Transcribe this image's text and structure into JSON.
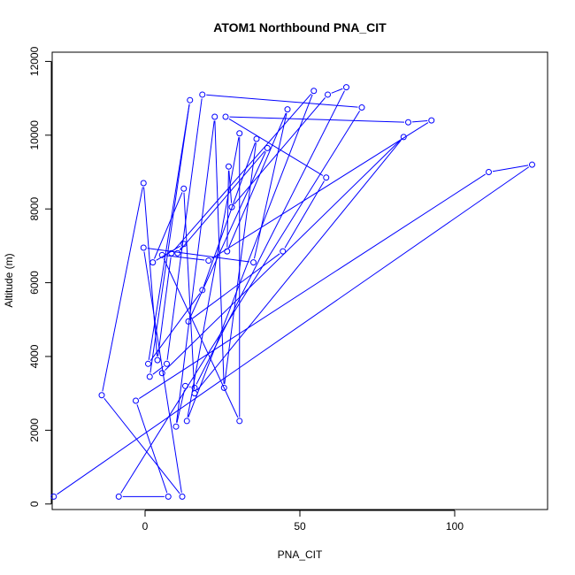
{
  "chart_data": {
    "type": "line",
    "title": "ATOM1 Northbound PNA_CIT",
    "xlabel": "PNA_CIT",
    "ylabel": "Altitude (m)",
    "xlim": [
      -30,
      130
    ],
    "ylim": [
      -150,
      12250
    ],
    "x_ticks": [
      0,
      50,
      100
    ],
    "y_ticks": [
      0,
      2000,
      4000,
      6000,
      8000,
      10000,
      12000
    ],
    "grid": false,
    "legend": "none",
    "color": "#0000ff",
    "series": [
      {
        "points": [
          [
            -29.5,
            200
          ],
          [
            125,
            9200
          ],
          [
            111,
            9000
          ],
          [
            -3,
            2800
          ],
          [
            7.5,
            200
          ],
          [
            -8.5,
            200
          ],
          [
            70,
            10750
          ],
          [
            18.5,
            11100
          ],
          [
            7,
            3800
          ],
          [
            1.5,
            3450
          ],
          [
            14.5,
            10950
          ],
          [
            1,
            3800
          ],
          [
            18.5,
            5800
          ],
          [
            36,
            9900
          ],
          [
            25.5,
            3150
          ],
          [
            22.5,
            10500
          ],
          [
            10,
            2100
          ],
          [
            13,
            3200
          ],
          [
            16,
            3150
          ],
          [
            65,
            11300
          ],
          [
            59,
            11100
          ],
          [
            28,
            8050
          ],
          [
            27,
            9150
          ],
          [
            26.5,
            6850
          ],
          [
            46,
            10700
          ],
          [
            35,
            6550
          ],
          [
            -0.5,
            6950
          ],
          [
            12,
            200
          ],
          [
            -14,
            2950
          ],
          [
            -0.5,
            8700
          ],
          [
            4,
            3900
          ],
          [
            8.5,
            6800
          ],
          [
            54.5,
            11200
          ],
          [
            13.5,
            2250
          ],
          [
            30.5,
            10050
          ],
          [
            30.5,
            2250
          ],
          [
            5.5,
            6750
          ],
          [
            20.5,
            6600
          ],
          [
            92.5,
            10400
          ],
          [
            85,
            10350
          ],
          [
            26,
            10500
          ],
          [
            58.5,
            8850
          ],
          [
            44.5,
            6850
          ],
          [
            14,
            4950
          ],
          [
            39.5,
            9650
          ],
          [
            10.5,
            6800
          ],
          [
            12.5,
            7050
          ],
          [
            2.5,
            6550
          ],
          [
            12.5,
            8550
          ],
          [
            16,
            3000
          ],
          [
            83.5,
            9950
          ],
          [
            5.5,
            3550
          ]
        ]
      }
    ]
  }
}
